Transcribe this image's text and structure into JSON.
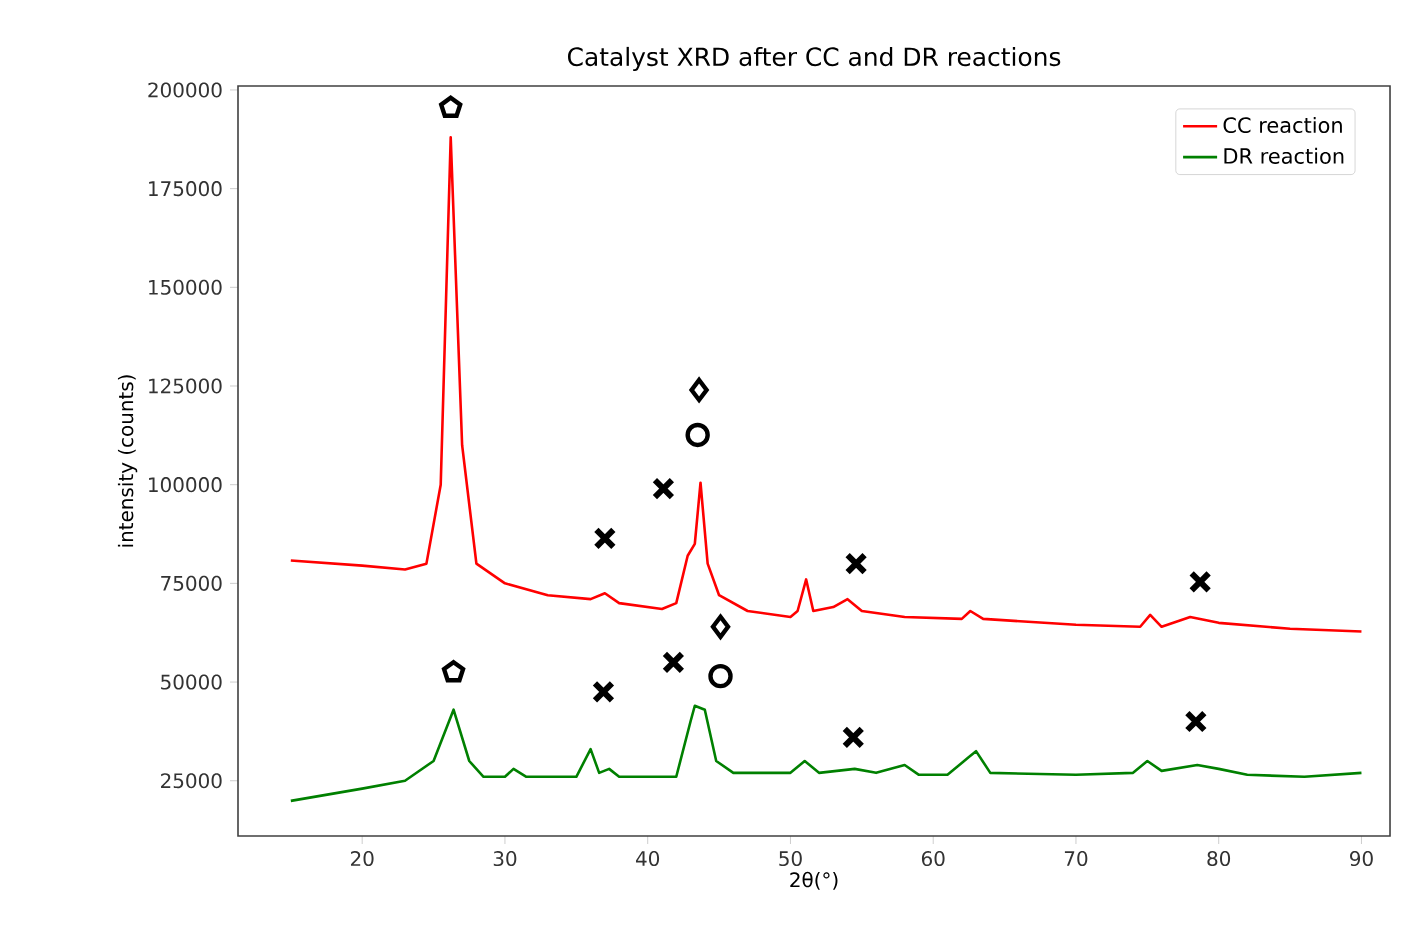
{
  "chart_data": {
    "type": "line",
    "title": "Catalyst XRD after CC and DR reactions",
    "xlabel": "2θ(°)",
    "ylabel": "intensity (counts)",
    "xlim": [
      11.3,
      92
    ],
    "ylim": [
      11000,
      201000
    ],
    "xticks": [
      20,
      30,
      40,
      50,
      60,
      70,
      80,
      90
    ],
    "yticks": [
      25000,
      50000,
      75000,
      100000,
      125000,
      150000,
      175000,
      200000
    ],
    "grid": false,
    "legend": "top right",
    "series": [
      {
        "name": "CC reaction",
        "color": "#ff0000",
        "x": [
          15,
          20,
          23,
          24.5,
          25.5,
          26.2,
          27,
          28,
          30,
          33,
          36,
          37,
          38,
          41,
          42,
          42.8,
          43.3,
          43.7,
          44.2,
          45,
          47,
          50,
          50.5,
          51.1,
          51.6,
          53,
          54,
          55,
          58,
          62,
          62.6,
          63.5,
          70,
          74.5,
          75.2,
          76,
          78,
          80,
          85,
          90
        ],
        "values": [
          80800,
          79500,
          78500,
          80000,
          100000,
          188000,
          110000,
          80000,
          75000,
          72000,
          71000,
          72500,
          70000,
          68500,
          70000,
          82000,
          85000,
          100500,
          80000,
          72000,
          68000,
          66500,
          68000,
          76000,
          68000,
          69000,
          71000,
          68000,
          66500,
          66000,
          68000,
          66000,
          64500,
          64000,
          67000,
          64000,
          66500,
          65000,
          63500,
          62800
        ]
      },
      {
        "name": "DR reaction",
        "color": "#008000",
        "x": [
          15,
          20,
          23,
          25,
          26.4,
          27.5,
          28.5,
          30,
          30.6,
          31.5,
          35,
          36,
          36.6,
          37.3,
          38,
          42,
          43,
          43.3,
          44,
          44.8,
          46,
          50,
          51,
          52,
          54.5,
          56,
          58,
          59,
          61,
          62.5,
          63,
          64,
          70,
          74,
          75,
          76,
          78.5,
          80,
          82,
          86,
          90
        ],
        "values": [
          19900,
          23000,
          25000,
          30000,
          43000,
          30000,
          26000,
          26000,
          28000,
          26000,
          26000,
          33000,
          27000,
          28000,
          26000,
          26000,
          40000,
          44000,
          43000,
          30000,
          27000,
          27000,
          30000,
          27000,
          28000,
          27000,
          29000,
          26500,
          26500,
          31000,
          32500,
          27000,
          26500,
          27000,
          30000,
          27500,
          29000,
          28000,
          26500,
          26000,
          27000
        ]
      },
      {
        "type": "scatter",
        "color": "#000000",
        "x": [
          26.2,
          26.4
        ],
        "values": [
          195500,
          52500
        ]
      },
      {
        "type": "scatter",
        "marker": "cross",
        "color": "#000000",
        "x": [
          37.0,
          41.1,
          54.6,
          78.7,
          36.9,
          41.8,
          54.4,
          78.4
        ],
        "values": [
          86400,
          99000,
          80000,
          75400,
          47500,
          55000,
          36000,
          40000
        ]
      },
      {
        "type": "scatter",
        "marker": "circle",
        "color": "#000000",
        "x": [
          43.5,
          45.1
        ],
        "values": [
          112600,
          51500
        ]
      },
      {
        "type": "scatter",
        "marker": "diamond",
        "color": "#000000",
        "x": [
          43.6,
          45.1
        ],
        "values": [
          124000,
          64000
        ]
      }
    ]
  }
}
